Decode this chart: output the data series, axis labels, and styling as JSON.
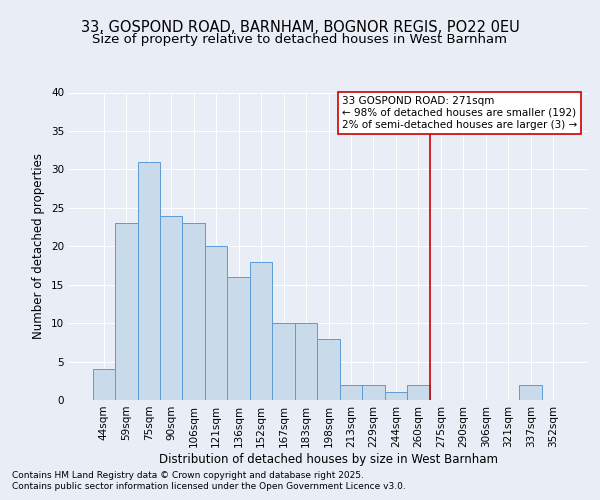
{
  "title_line1": "33, GOSPOND ROAD, BARNHAM, BOGNOR REGIS, PO22 0EU",
  "title_line2": "Size of property relative to detached houses in West Barnham",
  "xlabel": "Distribution of detached houses by size in West Barnham",
  "ylabel": "Number of detached properties",
  "categories": [
    "44sqm",
    "59sqm",
    "75sqm",
    "90sqm",
    "106sqm",
    "121sqm",
    "136sqm",
    "152sqm",
    "167sqm",
    "183sqm",
    "198sqm",
    "213sqm",
    "229sqm",
    "244sqm",
    "260sqm",
    "275sqm",
    "290sqm",
    "306sqm",
    "321sqm",
    "337sqm",
    "352sqm"
  ],
  "values": [
    4,
    23,
    31,
    24,
    23,
    20,
    16,
    18,
    10,
    10,
    8,
    2,
    2,
    1,
    2,
    0,
    0,
    0,
    0,
    2,
    0
  ],
  "bar_color": "#c9daea",
  "bar_edge_color": "#5b9bd5",
  "vline_bin_index": 15,
  "vline_color": "#cc0000",
  "annotation_box_text": "33 GOSPOND ROAD: 271sqm\n← 98% of detached houses are smaller (192)\n2% of semi-detached houses are larger (3) →",
  "annotation_box_edge_color": "#cc0000",
  "annotation_box_facecolor": "#ffffff",
  "ylim": [
    0,
    40
  ],
  "yticks": [
    0,
    5,
    10,
    15,
    20,
    25,
    30,
    35,
    40
  ],
  "background_color": "#e8edf6",
  "plot_bg_color": "#e8edf6",
  "grid_color": "#ffffff",
  "footer_line1": "Contains HM Land Registry data © Crown copyright and database right 2025.",
  "footer_line2": "Contains public sector information licensed under the Open Government Licence v3.0.",
  "title_fontsize": 10.5,
  "subtitle_fontsize": 9.5,
  "axis_label_fontsize": 8.5,
  "tick_fontsize": 7.5,
  "annotation_fontsize": 7.5,
  "footer_fontsize": 6.5
}
